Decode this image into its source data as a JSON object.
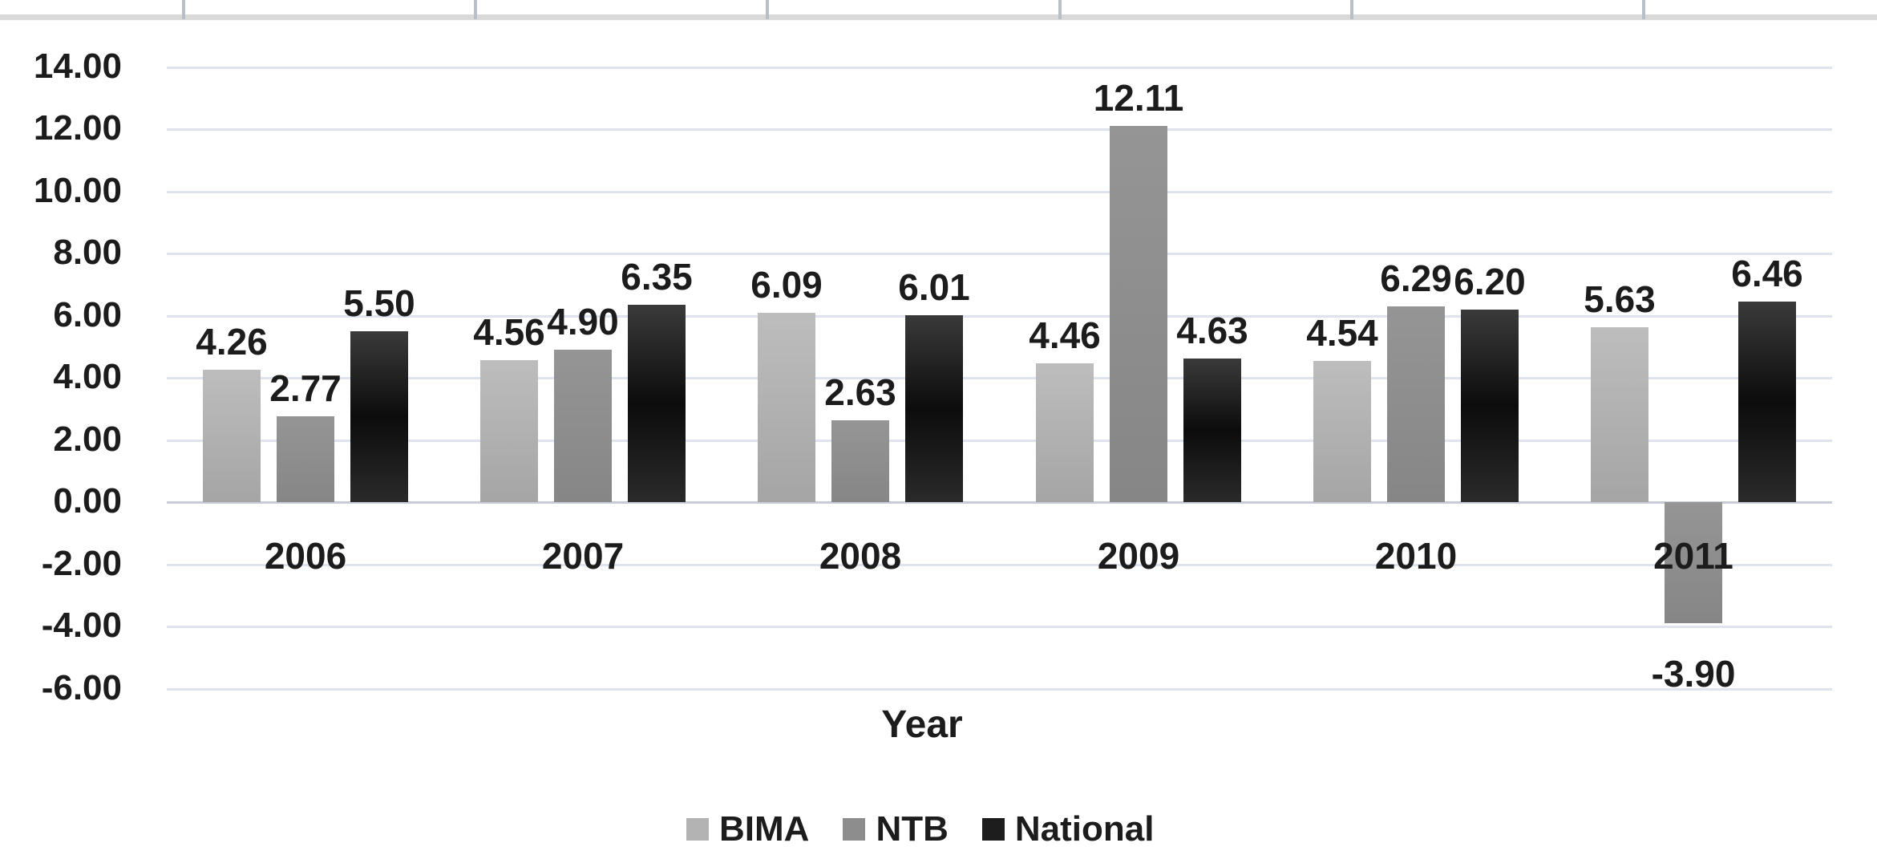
{
  "chart_data": {
    "type": "bar",
    "title": "",
    "xlabel": "Year",
    "ylabel": "",
    "categories": [
      "2006",
      "2007",
      "2008",
      "2009",
      "2010",
      "2011"
    ],
    "series": [
      {
        "name": "BIMA",
        "color": "#b3b3b3",
        "gradient": [
          "#bdbdbd",
          "#a5a5a5"
        ],
        "values": [
          4.26,
          4.56,
          6.09,
          4.46,
          4.54,
          5.63
        ]
      },
      {
        "name": "NTB",
        "color": "#8d8d8d",
        "gradient": [
          "#959595",
          "#868686"
        ],
        "values": [
          2.77,
          4.9,
          2.63,
          12.11,
          6.29,
          -3.9
        ]
      },
      {
        "name": "National",
        "color": "#1d1d1d",
        "gradient": [
          "#3a3a3a",
          "#0c0c0c",
          "#2a2a2a"
        ],
        "values": [
          5.5,
          6.35,
          6.01,
          4.63,
          6.2,
          6.46
        ]
      }
    ],
    "data_labels": true,
    "label_format_decimals": 2,
    "y_axis": {
      "min": -6,
      "max": 14,
      "step": 2,
      "tick_labels": [
        "14.00",
        "12.00",
        "10.00",
        "8.00",
        "6.00",
        "4.00",
        "2.00",
        "0.00",
        "-2.00",
        "-4.00",
        "-6.00"
      ]
    },
    "grid": true,
    "legend_position": "bottom"
  }
}
